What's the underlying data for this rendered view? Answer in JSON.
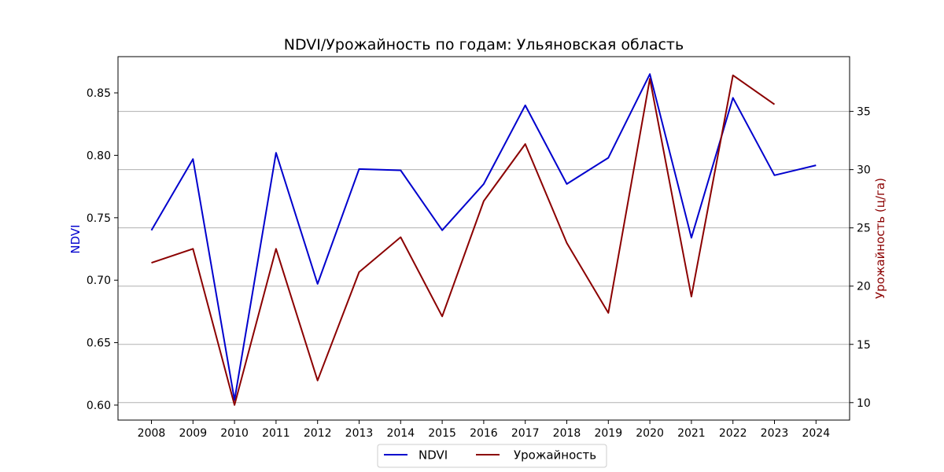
{
  "chart_data": {
    "type": "line",
    "title": "NDVI/Урожайность по годам: Ульяновская область",
    "x": [
      2008,
      2009,
      2010,
      2011,
      2012,
      2013,
      2014,
      2015,
      2016,
      2017,
      2018,
      2019,
      2020,
      2021,
      2022,
      2023,
      2024
    ],
    "x_tick_labels": [
      "2008",
      "2009",
      "2010",
      "2011",
      "2012",
      "2013",
      "2014",
      "2015",
      "2016",
      "2017",
      "2018",
      "2019",
      "2020",
      "2021",
      "2022",
      "2023",
      "2024"
    ],
    "left_axis": {
      "label": "NDVI",
      "color": "#0000cd",
      "ylim": [
        0.588,
        0.879
      ],
      "ticks": [
        0.6,
        0.65,
        0.7,
        0.75,
        0.8,
        0.85
      ],
      "tick_labels": [
        "0.60",
        "0.65",
        "0.70",
        "0.75",
        "0.80",
        "0.85"
      ]
    },
    "right_axis": {
      "label": "Урожайность (ц/га)",
      "color": "#8b0000",
      "ylim": [
        8.5,
        39.7
      ],
      "ticks": [
        10,
        15,
        20,
        25,
        30,
        35
      ],
      "tick_labels": [
        "10",
        "15",
        "20",
        "25",
        "30",
        "35"
      ]
    },
    "grid": "horizontal, right-axis ticks",
    "legend_position": "bottom-center",
    "series": [
      {
        "name": "NDVI",
        "axis": "left",
        "color": "#0000cd",
        "values": [
          0.74,
          0.797,
          0.604,
          0.802,
          0.697,
          0.789,
          0.788,
          0.74,
          0.777,
          0.84,
          0.777,
          0.798,
          0.865,
          0.734,
          0.846,
          0.784,
          0.792
        ]
      },
      {
        "name": "Урожайность",
        "axis": "right",
        "color": "#8b0000",
        "values": [
          22.0,
          23.2,
          9.8,
          23.2,
          11.9,
          21.2,
          24.2,
          17.4,
          27.3,
          32.2,
          23.7,
          17.7,
          37.8,
          19.1,
          38.1,
          35.6,
          null
        ]
      }
    ]
  }
}
